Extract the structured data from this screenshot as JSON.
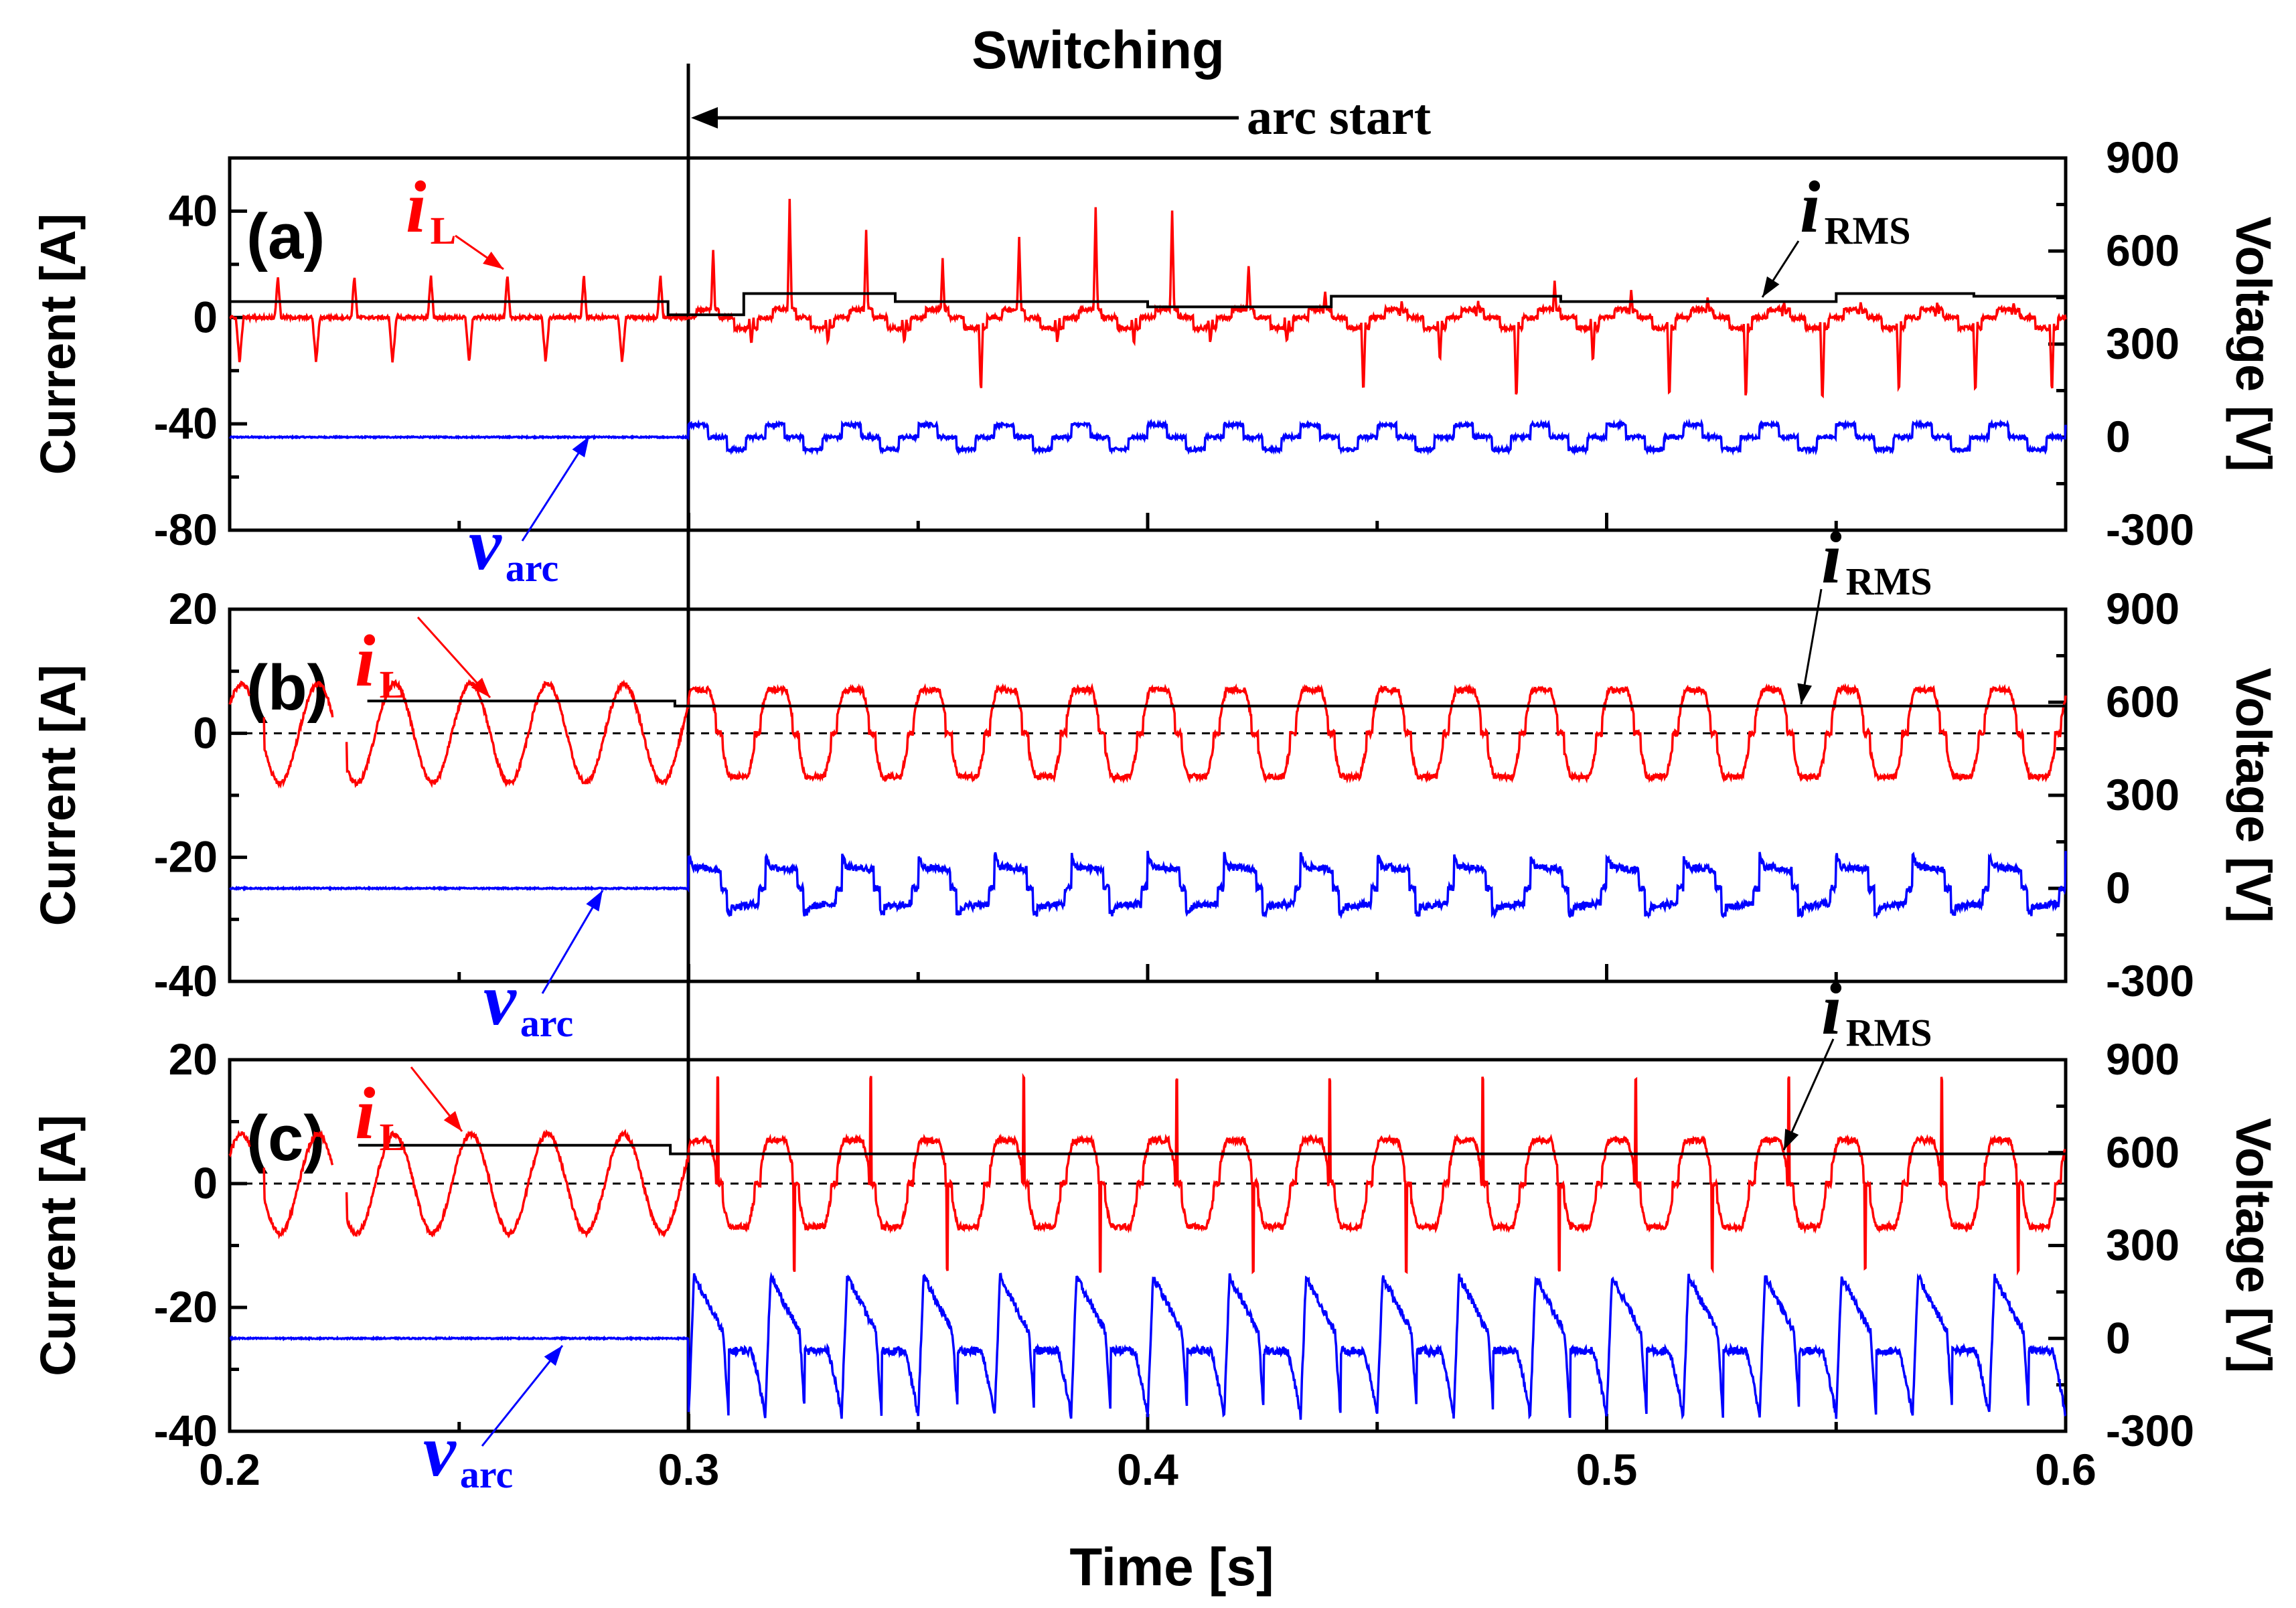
{
  "figure": {
    "header": "Switching",
    "arc_start_label": "arc start",
    "x_axis_title": "Time [s]",
    "x_ticks": [
      "0.2",
      "0.3",
      "0.4",
      "0.5",
      "0.6"
    ],
    "colors": {
      "current": "#ff0000",
      "voltage": "#0000ff",
      "rms": "#000000",
      "axes": "#000000"
    }
  },
  "chart_data": [
    {
      "type": "line",
      "panel_label": "(a)",
      "y_left_title": "Current [A]",
      "y_right_title": "Voltage [V]",
      "y_left_ticks": [
        "40",
        "0",
        "-40",
        "-80"
      ],
      "y_right_ticks": [
        "900",
        "600",
        "300",
        "0",
        "-300"
      ],
      "xlim": [
        0.2,
        0.6
      ],
      "ylim_left": [
        -80,
        60
      ],
      "ylim_right": [
        -300,
        900
      ],
      "switch_time": 0.3,
      "grid": false,
      "annotations": {
        "iL": {
          "sym": "i",
          "sub": "L"
        },
        "vArc": {
          "sym": "v",
          "sub": "arc"
        },
        "iRMS": {
          "sym": "i",
          "sub": "RMS"
        }
      },
      "series": [
        {
          "name": "iL",
          "axis": "left",
          "color": "#ff0000",
          "description": "load current; before switching: periodic positive/negative spikes; after: larger irregular spikes",
          "pre": {
            "base": 0,
            "pos_peak": 16,
            "neg_peak": -17,
            "period": 0.0167
          },
          "post_pos_peaks": [
            26,
            44,
            33,
            22,
            30,
            41,
            40,
            20,
            10,
            6,
            6,
            14,
            10,
            8,
            6,
            6,
            5,
            6,
            10,
            16,
            7,
            12
          ],
          "post_neg_peaks": [
            -10,
            -10,
            -10,
            -30,
            -10,
            -10,
            -10,
            -10,
            -30,
            -17,
            -33,
            -17,
            -32,
            -33,
            -34,
            -30,
            -30,
            -30,
            -30,
            -10,
            -36
          ]
        },
        {
          "name": "vArc",
          "axis": "right",
          "color": "#0000ff",
          "description": "arc voltage; ~0 V before switching, small square-like ripple after",
          "pre_value": 0,
          "post_amplitude": 40
        },
        {
          "name": "iRMS",
          "axis": "left",
          "color": "#000000",
          "description": "RMS current, stepped",
          "steps": [
            {
              "x0": 0.2,
              "x1": 0.2955,
              "y": 6
            },
            {
              "x0": 0.2955,
              "x1": 0.312,
              "y": 1
            },
            {
              "x0": 0.312,
              "x1": 0.345,
              "y": 9
            },
            {
              "x0": 0.345,
              "x1": 0.4,
              "y": 6
            },
            {
              "x0": 0.4,
              "x1": 0.44,
              "y": 4
            },
            {
              "x0": 0.44,
              "x1": 0.49,
              "y": 8
            },
            {
              "x0": 0.49,
              "x1": 0.55,
              "y": 6
            },
            {
              "x0": 0.55,
              "x1": 0.58,
              "y": 9
            },
            {
              "x0": 0.58,
              "x1": 0.6,
              "y": 8
            }
          ]
        }
      ]
    },
    {
      "type": "line",
      "panel_label": "(b)",
      "y_left_title": "Current [A]",
      "y_right_title": "Voltage [V]",
      "y_left_ticks": [
        "20",
        "0",
        "-20",
        "-40"
      ],
      "y_right_ticks": [
        "900",
        "600",
        "300",
        "0",
        "-300"
      ],
      "xlim": [
        0.2,
        0.6
      ],
      "ylim_left": [
        -40,
        20
      ],
      "ylim_right": [
        -300,
        900
      ],
      "switch_time": 0.3,
      "grid": false,
      "annotations": {
        "iL": {
          "sym": "i",
          "sub": "L"
        },
        "vArc": {
          "sym": "v",
          "sub": "arc"
        },
        "iRMS": {
          "sym": "i",
          "sub": "RMS"
        }
      },
      "series": [
        {
          "name": "iL",
          "axis": "left",
          "color": "#ff0000",
          "description": "load current; sinusoid ~8 A amplitude before switching, trapezoidal ~7 A after",
          "pre_amplitude": 8,
          "post_amplitude": 7,
          "period": 0.0167
        },
        {
          "name": "vArc",
          "axis": "right",
          "color": "#0000ff",
          "description": "arc voltage; 0 V before switching, square-like wave after",
          "pre_value": 0,
          "post_high": 70,
          "post_low": -60
        },
        {
          "name": "iRMS",
          "axis": "left",
          "color": "#000000",
          "steps": [
            {
              "x0": 0.23,
              "x1": 0.297,
              "y": 5.2
            },
            {
              "x0": 0.297,
              "x1": 0.6,
              "y": 4.4
            }
          ]
        }
      ]
    },
    {
      "type": "line",
      "panel_label": "(c)",
      "y_left_title": "Current [A]",
      "y_right_title": "Voltage [V]",
      "y_left_ticks": [
        "20",
        "0",
        "-20",
        "-40"
      ],
      "y_right_ticks": [
        "900",
        "600",
        "300",
        "0",
        "-300"
      ],
      "xlim": [
        0.2,
        0.6
      ],
      "ylim_left": [
        -40,
        20
      ],
      "ylim_right": [
        -300,
        900
      ],
      "switch_time": 0.3,
      "grid": false,
      "annotations": {
        "iL": {
          "sym": "i",
          "sub": "L"
        },
        "vArc": {
          "sym": "v",
          "sub": "arc"
        },
        "iRMS": {
          "sym": "i",
          "sub": "RMS"
        }
      },
      "series": [
        {
          "name": "iL",
          "axis": "left",
          "color": "#ff0000",
          "description": "load current; sinusoid before switching; trapezoid with spikes after",
          "pre_amplitude": 8,
          "post_amplitude": 7,
          "spike_peak": 17,
          "period": 0.0167
        },
        {
          "name": "vArc",
          "axis": "right",
          "color": "#0000ff",
          "description": "arc voltage; 0 V before switching, sawtooth-like with large swings after",
          "pre_value": 0,
          "post_high": 200,
          "post_low": -250
        },
        {
          "name": "iRMS",
          "axis": "left",
          "color": "#000000",
          "steps": [
            {
              "x0": 0.228,
              "x1": 0.296,
              "y": 6.2
            },
            {
              "x0": 0.296,
              "x1": 0.6,
              "y": 4.8
            }
          ]
        }
      ]
    }
  ]
}
